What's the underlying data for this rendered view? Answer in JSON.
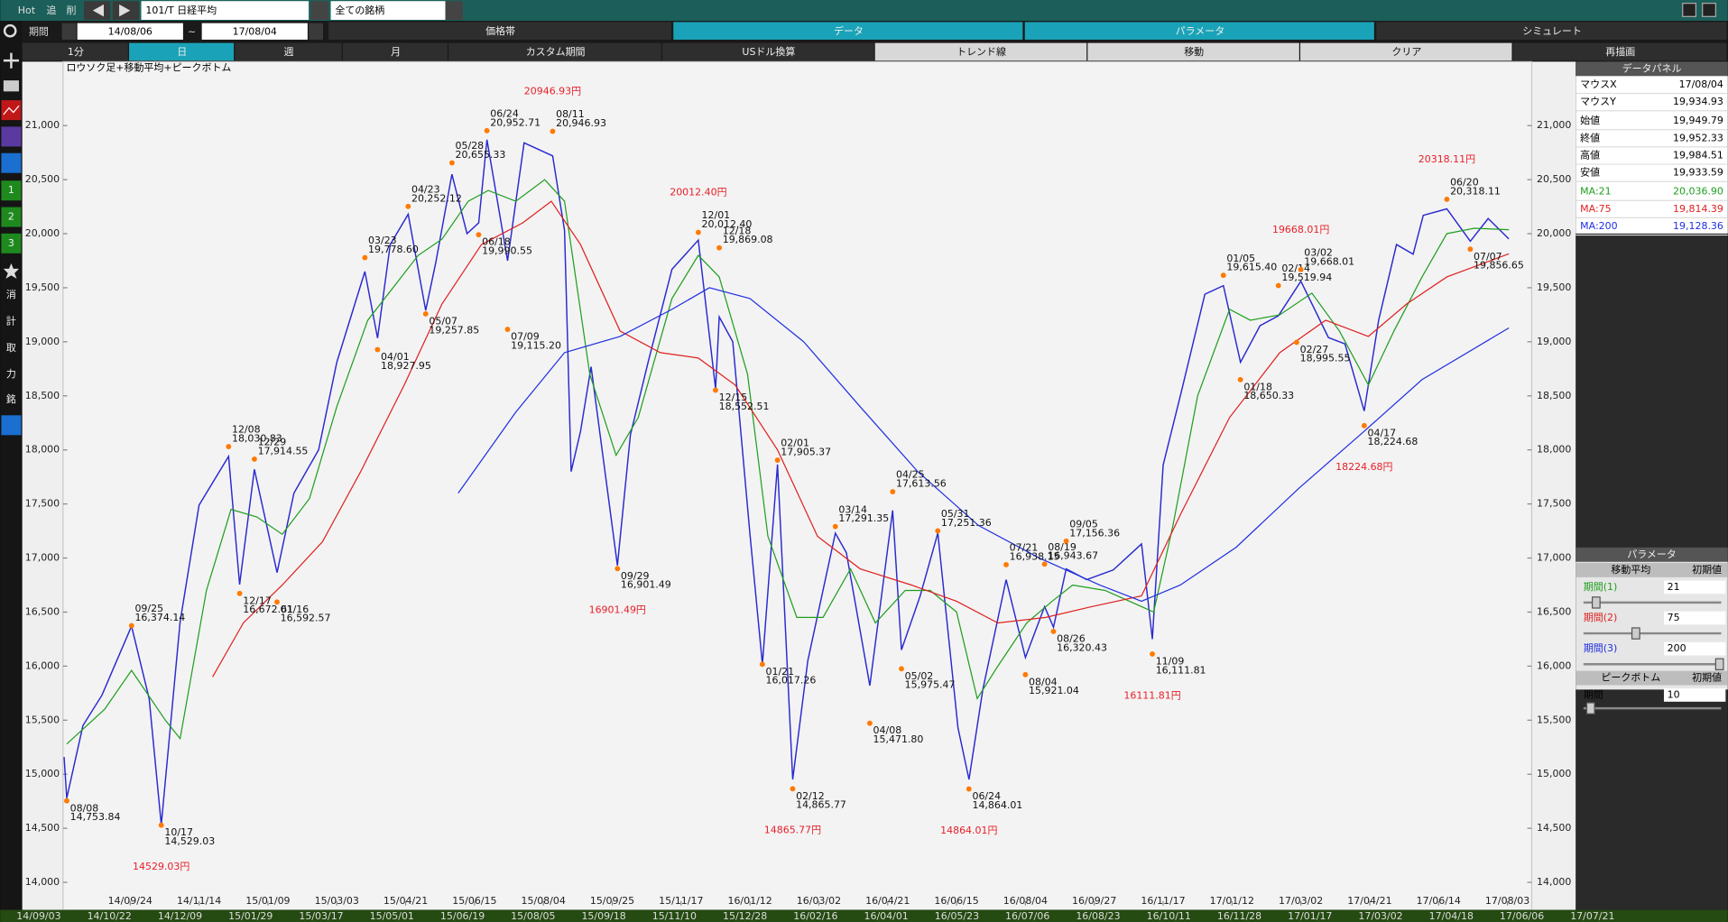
{
  "toolbar": {
    "hot": "Hot",
    "add": "追",
    "del": "削",
    "symbol": "101/T 日経平均",
    "universe": "全ての銘柄",
    "period_label": "期間",
    "from": "14/08/06",
    "tilde": "~",
    "to": "17/08/04"
  },
  "tabs": [
    "価格帯",
    "データ",
    "パラメータ",
    "シミュレート"
  ],
  "period_buttons": [
    "1分",
    "日",
    "週",
    "月",
    "カスタム期間",
    "USドル換算",
    "トレンド線",
    "移動",
    "クリア",
    "再描画"
  ],
  "left_tools": [
    "1",
    "2",
    "3",
    "消",
    "計",
    "取",
    "力",
    "銘"
  ],
  "data_panel": {
    "title": "データパネル",
    "rows": [
      {
        "label": "マウスX",
        "value": "17/08/04"
      },
      {
        "label": "マウスY",
        "value": "19,934.93"
      },
      {
        "label": "始値",
        "value": "19,949.79"
      },
      {
        "label": "終値",
        "value": "19,952.33"
      },
      {
        "label": "高値",
        "value": "19,984.51"
      },
      {
        "label": "安値",
        "value": "19,933.59"
      },
      {
        "label": "MA:21",
        "value": "20,036.90",
        "color": "#1e9e1e"
      },
      {
        "label": "MA:75",
        "value": "19,814.39",
        "color": "#e02020"
      },
      {
        "label": "MA:200",
        "value": "19,128.36",
        "color": "#2030e0"
      }
    ]
  },
  "parameter_panel": {
    "title": "パラメータ",
    "ma_title": "移動平均",
    "reset": "初期値",
    "ma_rows": [
      {
        "label": "期間(1)",
        "value": "21",
        "color": "#1e9e1e"
      },
      {
        "label": "期間(2)",
        "value": "75",
        "color": "#e02020"
      },
      {
        "label": "期間(3)",
        "value": "200",
        "color": "#2030e0"
      }
    ],
    "peak_title": "ピークボトム",
    "peak_reset": "初期値",
    "peak_rows": [
      {
        "label": "期間",
        "value": "10"
      }
    ]
  },
  "navigator_dates": [
    "14/09/03",
    "14/10/22",
    "14/12/09",
    "15/01/29",
    "15/03/17",
    "15/05/01",
    "15/06/19",
    "15/08/05",
    "15/09/18",
    "15/11/10",
    "15/12/28",
    "16/02/16",
    "16/04/01",
    "16/05/23",
    "16/07/06",
    "16/08/23",
    "16/10/11",
    "16/11/28",
    "17/01/17",
    "17/03/02",
    "17/04/18",
    "17/06/06",
    "17/07/21"
  ],
  "chart_data": {
    "type": "line",
    "title": "ロウソク足+移動平均+ピークボトム",
    "ylim": [
      13786,
      21591
    ],
    "yticks": [
      {
        "value": 14000,
        "label": "14,000"
      },
      {
        "value": 14500,
        "label": "14,500"
      },
      {
        "value": 15000,
        "label": "15,000"
      },
      {
        "value": 15500,
        "label": "15,500"
      },
      {
        "value": 16000,
        "label": "16,000"
      },
      {
        "value": 16500,
        "label": "16,500"
      },
      {
        "value": 17000,
        "label": "17,000"
      },
      {
        "value": 17500,
        "label": "17,500"
      },
      {
        "value": 18000,
        "label": "18,000"
      },
      {
        "value": 18500,
        "label": "18,500"
      },
      {
        "value": 19000,
        "label": "19,000"
      },
      {
        "value": 19500,
        "label": "19,500"
      },
      {
        "value": 20000,
        "label": "20,000"
      },
      {
        "value": 20500,
        "label": "20,500"
      },
      {
        "value": 21000,
        "label": "21,000"
      }
    ],
    "xticks": [
      "14/09/24",
      "14/11/14",
      "15/01/09",
      "15/03/03",
      "15/04/21",
      "15/06/15",
      "15/08/04",
      "15/09/25",
      "15/11/17",
      "16/01/12",
      "16/03/02",
      "16/04/21",
      "16/06/15",
      "16/08/04",
      "16/09/27",
      "16/11/17",
      "17/01/12",
      "17/03/02",
      "17/04/21",
      "17/06/14",
      "17/08/03"
    ],
    "grid": false,
    "series": [
      {
        "color": "#2a2ad0",
        "x": [
          "14/08/06",
          "14/08/08",
          "14/08/20",
          "14/09/03",
          "14/09/25",
          "14/10/08",
          "14/10/17",
          "14/10/31",
          "14/11/14",
          "14/12/08",
          "14/12/17",
          "14/12/29",
          "15/01/16",
          "15/01/29",
          "15/02/17",
          "15/03/03",
          "15/03/23",
          "15/04/01",
          "15/04/10",
          "15/04/23",
          "15/05/07",
          "15/05/15",
          "15/05/28",
          "15/06/09",
          "15/06/18",
          "15/06/24",
          "15/07/09",
          "15/07/21",
          "15/08/11",
          "15/08/20",
          "15/08/25",
          "15/09/01",
          "15/09/09",
          "15/09/29",
          "15/10/09",
          "15/10/23",
          "15/11/10",
          "15/12/01",
          "15/12/15",
          "15/12/18",
          "15/12/29",
          "16/01/12",
          "16/01/21",
          "16/02/01",
          "16/02/12",
          "16/02/23",
          "16/03/14",
          "16/03/22",
          "16/04/08",
          "16/04/25",
          "16/05/02",
          "16/05/17",
          "16/05/31",
          "16/06/16",
          "16/06/24",
          "16/07/04",
          "16/07/21",
          "16/08/04",
          "16/08/19",
          "16/08/26",
          "16/09/05",
          "16/09/21",
          "16/10/11",
          "16/11/01",
          "16/11/09",
          "16/11/17",
          "16/12/01",
          "16/12/21",
          "17/01/05",
          "17/01/18",
          "17/02/01",
          "17/02/14",
          "17/03/02",
          "17/03/22",
          "17/04/03",
          "17/04/17",
          "17/04/28",
          "17/05/12",
          "17/05/25",
          "17/06/02",
          "17/06/20",
          "17/07/07",
          "17/07/20",
          "17/08/04"
        ],
        "values": [
          15160,
          14778,
          15450,
          15730,
          16370,
          15700,
          14532,
          16410,
          17490,
          17940,
          16755,
          17820,
          16865,
          17600,
          18000,
          18810,
          19650,
          19035,
          19900,
          20180,
          19290,
          19730,
          20550,
          20000,
          20100,
          20870,
          19750,
          20840,
          20720,
          20030,
          17800,
          18170,
          18770,
          16930,
          18140,
          18830,
          19670,
          19940,
          18565,
          19230,
          19000,
          17220,
          16017,
          17865,
          14952,
          16050,
          17230,
          17050,
          15820,
          17440,
          16150,
          16650,
          17230,
          15430,
          14952,
          15780,
          16800,
          16080,
          16550,
          16360,
          16900,
          16800,
          16890,
          17130,
          16250,
          17860,
          18500,
          19440,
          19520,
          18810,
          19150,
          19240,
          19560,
          19040,
          18980,
          18360,
          19200,
          19900,
          19810,
          20170,
          20230,
          19930,
          20140,
          19952
        ]
      },
      {
        "color": "#1e9e1e",
        "x": [
          "14/08/08",
          "14/09/05",
          "14/09/25",
          "14/10/20",
          "14/10/31",
          "14/11/20",
          "14/12/10",
          "14/12/31",
          "15/01/20",
          "15/02/10",
          "15/03/03",
          "15/03/25",
          "15/04/15",
          "15/05/01",
          "15/05/20",
          "15/06/10",
          "15/06/25",
          "15/07/15",
          "15/08/05",
          "15/08/20",
          "15/09/08",
          "15/09/28",
          "15/10/15",
          "15/11/10",
          "15/12/01",
          "15/12/18",
          "16/01/10",
          "16/01/25",
          "16/02/15",
          "16/03/05",
          "16/03/25",
          "16/04/12",
          "16/05/05",
          "16/05/25",
          "16/06/15",
          "16/06/30",
          "16/07/15",
          "16/08/05",
          "16/08/25",
          "16/09/10",
          "16/10/05",
          "16/11/10",
          "16/11/25",
          "16/12/15",
          "17/01/10",
          "17/01/25",
          "17/02/15",
          "17/03/10",
          "17/03/30",
          "17/04/20",
          "17/05/10",
          "17/06/01",
          "17/06/20",
          "17/07/10",
          "17/08/04"
        ],
        "values": [
          15280,
          15600,
          15960,
          15500,
          15330,
          16700,
          17450,
          17380,
          17220,
          17550,
          18400,
          19200,
          19550,
          19800,
          19950,
          20300,
          20400,
          20300,
          20500,
          20300,
          18700,
          17950,
          18300,
          19400,
          19800,
          19600,
          18700,
          17200,
          16450,
          16450,
          16900,
          16400,
          16700,
          16700,
          16500,
          15700,
          16000,
          16400,
          16600,
          16750,
          16700,
          16500,
          17300,
          18500,
          19300,
          19200,
          19250,
          19450,
          19100,
          18600,
          19100,
          19600,
          20000,
          20050,
          20037
        ]
      },
      {
        "color": "#e02020",
        "x": [
          "14/11/25",
          "14/12/20",
          "15/01/20",
          "15/02/20",
          "15/03/20",
          "15/04/20",
          "15/05/20",
          "15/06/20",
          "15/07/20",
          "15/08/10",
          "15/09/01",
          "15/10/01",
          "15/11/01",
          "15/12/01",
          "15/12/31",
          "16/02/01",
          "16/03/01",
          "16/04/01",
          "16/05/10",
          "16/06/15",
          "16/07/15",
          "16/08/20",
          "16/09/25",
          "16/11/01",
          "16/12/01",
          "17/01/10",
          "17/02/15",
          "17/03/20",
          "17/04/20",
          "17/05/20",
          "17/06/20",
          "17/08/04"
        ],
        "values": [
          15900,
          16400,
          16750,
          17150,
          17800,
          18600,
          19350,
          19900,
          20100,
          20300,
          19900,
          19100,
          18900,
          18850,
          18600,
          18000,
          17200,
          16900,
          16750,
          16600,
          16400,
          16450,
          16550,
          16650,
          17400,
          18300,
          18900,
          19200,
          19050,
          19350,
          19600,
          19814
        ]
      },
      {
        "color": "#2030e0",
        "x": [
          "15/06/02",
          "15/07/15",
          "15/08/20",
          "15/10/01",
          "15/11/10",
          "15/12/10",
          "16/01/12",
          "16/02/20",
          "16/04/01",
          "16/05/15",
          "16/07/01",
          "16/08/15",
          "16/10/01",
          "16/11/01",
          "16/12/01",
          "17/01/15",
          "17/03/01",
          "17/04/15",
          "17/06/01",
          "17/08/04"
        ],
        "values": [
          17600,
          18350,
          18900,
          19050,
          19300,
          19500,
          19400,
          19000,
          18400,
          17800,
          17300,
          17000,
          16750,
          16600,
          16750,
          17100,
          17650,
          18150,
          18650,
          19128
        ]
      }
    ],
    "point_color": "#ff7a00",
    "annotation_color": "#e8202a",
    "peaks": [
      {
        "x": "14/09/25",
        "label": "09/25",
        "value": 16374.14,
        "value_label": "16,374.14"
      },
      {
        "x": "14/12/08",
        "label": "12/08",
        "value": 18030.83,
        "value_label": "18,030.83"
      },
      {
        "x": "14/12/29",
        "label": "12/29",
        "value": 17914.55,
        "value_label": "17,914.55"
      },
      {
        "x": "15/03/23",
        "label": "03/23",
        "value": 19778.6,
        "value_label": "19,778.60"
      },
      {
        "x": "15/04/23",
        "label": "04/23",
        "value": 20252.12,
        "value_label": "20,252.12"
      },
      {
        "x": "15/05/28",
        "label": "05/28",
        "value": 20655.33,
        "value_label": "20,655.33"
      },
      {
        "x": "15/06/24",
        "label": "06/24",
        "value": 20952.71,
        "value_label": "20,952.71"
      },
      {
        "x": "15/08/11",
        "label": "08/11",
        "value": 20946.93,
        "value_label": "20,946.93",
        "annotation": "20946.93円"
      },
      {
        "x": "15/12/01",
        "label": "12/01",
        "value": 20012.4,
        "value_label": "20,012.40",
        "annotation": "20012.40円"
      },
      {
        "x": "15/12/18",
        "label": "12/18",
        "value": 19869.08,
        "value_label": "19,869.08"
      },
      {
        "x": "16/02/01",
        "label": "02/01",
        "value": 17905.37,
        "value_label": "17,905.37"
      },
      {
        "x": "16/03/14",
        "label": "03/14",
        "value": 17291.35,
        "value_label": "17,291.35"
      },
      {
        "x": "16/04/25",
        "label": "04/25",
        "value": 17613.56,
        "value_label": "17,613.56"
      },
      {
        "x": "16/05/31",
        "label": "05/31",
        "value": 17251.36,
        "value_label": "17,251.36"
      },
      {
        "x": "16/07/21",
        "label": "07/21",
        "value": 16938.15,
        "value_label": "16,938.15"
      },
      {
        "x": "16/08/19",
        "label": "08/19",
        "value": 16943.67,
        "value_label": "16,943.67"
      },
      {
        "x": "16/09/05",
        "label": "09/05",
        "value": 17156.36,
        "value_label": "17,156.36"
      },
      {
        "x": "17/01/05",
        "label": "01/05",
        "value": 19615.4,
        "value_label": "19,615.40"
      },
      {
        "x": "17/02/14",
        "label": "02/14",
        "value": 19519.94,
        "value_label": "19,519.94"
      },
      {
        "x": "17/03/02",
        "label": "03/02",
        "value": 19668.01,
        "value_label": "19,668.01",
        "annotation": "19668.01円"
      },
      {
        "x": "17/06/20",
        "label": "06/20",
        "value": 20318.11,
        "value_label": "20,318.11",
        "annotation": "20318.11円"
      }
    ],
    "bottoms": [
      {
        "x": "14/08/08",
        "label": "08/08",
        "value": 14753.84,
        "value_label": "14,753.84"
      },
      {
        "x": "14/10/17",
        "label": "10/17",
        "value": 14529.03,
        "value_label": "14,529.03",
        "annotation": "14529.03円"
      },
      {
        "x": "14/12/17",
        "label": "12/17",
        "value": 16672.61,
        "value_label": "16,672.61"
      },
      {
        "x": "15/01/16",
        "label": "01/16",
        "value": 16592.57,
        "value_label": "16,592.57"
      },
      {
        "x": "15/04/01",
        "label": "04/01",
        "value": 18927.95,
        "value_label": "18,927.95"
      },
      {
        "x": "15/05/07",
        "label": "05/07",
        "value": 19257.85,
        "value_label": "19,257.85"
      },
      {
        "x": "15/06/18",
        "label": "06/18",
        "value": 19990.55,
        "value_label": "19,990.55"
      },
      {
        "x": "15/07/09",
        "label": "07/09",
        "value": 19115.2,
        "value_label": "19,115.20"
      },
      {
        "x": "15/09/29",
        "label": "09/29",
        "value": 16901.49,
        "value_label": "16,901.49",
        "annotation": "16901.49円"
      },
      {
        "x": "15/12/15",
        "label": "12/15",
        "value": 18552.51,
        "value_label": "18,552.51"
      },
      {
        "x": "16/01/21",
        "label": "01/21",
        "value": 16017.26,
        "value_label": "16,017.26"
      },
      {
        "x": "16/02/12",
        "label": "02/12",
        "value": 14865.77,
        "value_label": "14,865.77",
        "annotation": "14865.77円"
      },
      {
        "x": "16/04/08",
        "label": "04/08",
        "value": 15471.8,
        "value_label": "15,471.80"
      },
      {
        "x": "16/05/02",
        "label": "05/02",
        "value": 15975.47,
        "value_label": "15,975.47"
      },
      {
        "x": "16/06/24",
        "label": "06/24",
        "value": 14864.01,
        "value_label": "14,864.01",
        "annotation": "14864.01円"
      },
      {
        "x": "16/08/04",
        "label": "08/04",
        "value": 15921.04,
        "value_label": "15,921.04"
      },
      {
        "x": "16/08/26",
        "label": "08/26",
        "value": 16320.43,
        "value_label": "16,320.43"
      },
      {
        "x": "16/11/09",
        "label": "11/09",
        "value": 16111.81,
        "value_label": "16,111.81",
        "annotation": "16111.81円"
      },
      {
        "x": "17/01/18",
        "label": "01/18",
        "value": 18650.33,
        "value_label": "18,650.33"
      },
      {
        "x": "17/02/27",
        "label": "02/27",
        "value": 18995.55,
        "value_label": "18,995.55"
      },
      {
        "x": "17/04/17",
        "label": "04/17",
        "value": 18224.68,
        "value_label": "18,224.68",
        "annotation": "18224.68円"
      },
      {
        "x": "17/07/07",
        "label": "07/07",
        "value": 19856.65,
        "value_label": "19,856.65"
      }
    ]
  }
}
